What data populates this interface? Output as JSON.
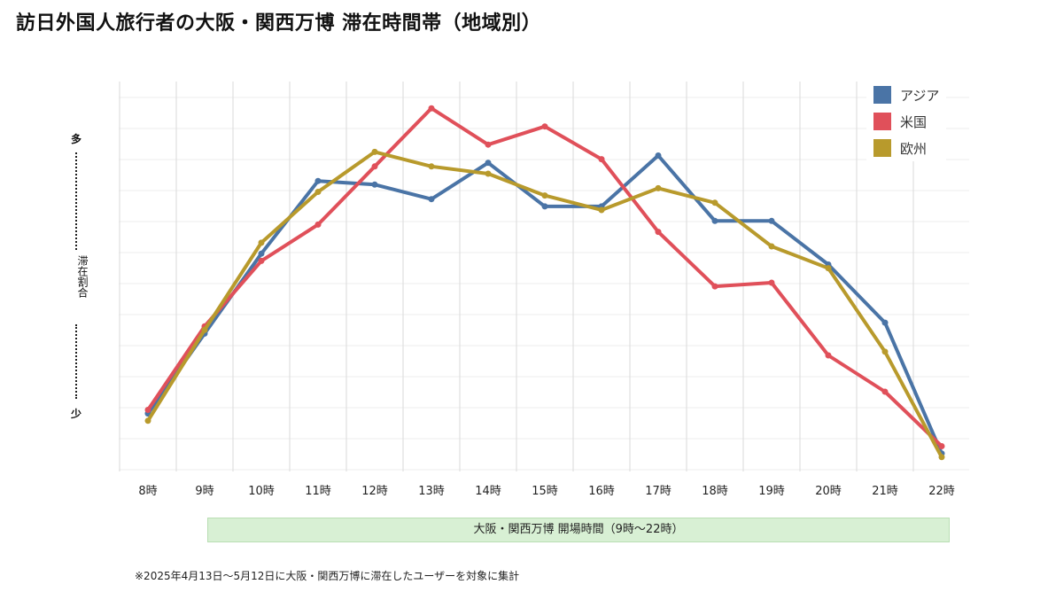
{
  "title": "訪日外国人旅行者の大阪・関西万博 滞在時間帯（地域別）",
  "y_axis": {
    "top_label": "多",
    "middle_label": "滞在割合",
    "bottom_label": "少"
  },
  "expo_bar_label": "大阪・関西万博 開場時間（9時〜22時）",
  "footnote": "※2025年4月13日〜5月12日に大阪・関西万博に滞在したユーザーを対象に集計",
  "chart_data": {
    "type": "line",
    "title": "訪日外国人旅行者の大阪・関西万博 滞在時間帯（地域別）",
    "xlabel": "",
    "ylabel": "滞在割合",
    "categories": [
      "8時",
      "9時",
      "10時",
      "11時",
      "12時",
      "13時",
      "14時",
      "15時",
      "16時",
      "17時",
      "18時",
      "19時",
      "20時",
      "21時",
      "22時"
    ],
    "ylim": [
      0,
      100
    ],
    "y_scale": "relative (少 → 多), no numeric ticks",
    "grid": true,
    "legend_position": "top-right",
    "series": [
      {
        "name": "アジア",
        "color": "#4a74a6",
        "values": [
          14,
          36,
          58,
          78,
          77,
          73,
          83,
          71,
          71,
          85,
          67,
          67,
          55,
          39,
          3
        ]
      },
      {
        "name": "米国",
        "color": "#e0505a",
        "values": [
          15,
          38,
          56,
          66,
          82,
          98,
          88,
          93,
          84,
          64,
          49,
          50,
          30,
          20,
          5
        ]
      },
      {
        "name": "欧州",
        "color": "#b89a2c",
        "values": [
          12,
          37,
          61,
          75,
          86,
          82,
          80,
          74,
          70,
          76,
          72,
          60,
          54,
          31,
          2
        ]
      }
    ]
  }
}
